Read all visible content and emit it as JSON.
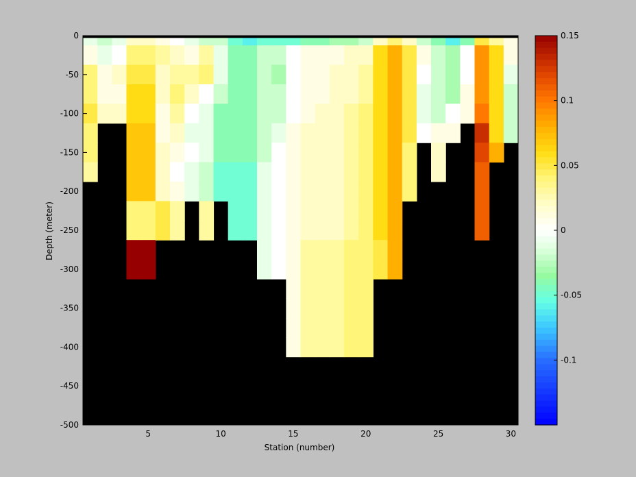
{
  "chart_data": {
    "type": "heatmap",
    "title": "",
    "xlabel": "Station (number)",
    "ylabel": "Depth (meter)",
    "xlim": [
      0.5,
      30.5
    ],
    "ylim": [
      -500,
      0
    ],
    "xticks": [
      5,
      10,
      15,
      20,
      25,
      30
    ],
    "yticks": [
      0,
      -50,
      -100,
      -150,
      -200,
      -250,
      -300,
      -350,
      -400,
      -450,
      -500
    ],
    "colorbar": {
      "range": [
        -0.15,
        0.15
      ],
      "ticks": [
        0.15,
        0.1,
        0.05,
        0,
        -0.05,
        -0.1
      ],
      "tick_labels": [
        "0.15",
        "0.1",
        "0.05",
        "0",
        "-0.05",
        "-0.1"
      ],
      "colormap": "blue-cyan-green-white-yellow-orange-darkred"
    },
    "no_data_color": "#000000",
    "background": "#c0c0c0",
    "depth_rows": [
      -5,
      -25,
      -50,
      -75,
      -100,
      -125,
      -150,
      -175,
      -200,
      -225,
      -250,
      -275,
      -300,
      -325,
      -350,
      -375,
      -400
    ],
    "stations": [
      {
        "station": 1,
        "values": [
          -0.01,
          0.01,
          0.04,
          0.04,
          0.05,
          0.04,
          0.04,
          0.03
        ]
      },
      {
        "station": 2,
        "values": [
          -0.02,
          -0.01,
          0.01,
          0.01,
          0.02
        ]
      },
      {
        "station": 3,
        "values": [
          -0.01,
          0.0,
          0.02,
          0.01,
          0.02
        ]
      },
      {
        "station": 4,
        "values": [
          0.02,
          0.04,
          0.05,
          0.06,
          0.06,
          0.07,
          0.07,
          0.07,
          0.07,
          0.04,
          0.04,
          0.15,
          0.15
        ]
      },
      {
        "station": 5,
        "values": [
          0.02,
          0.04,
          0.05,
          0.06,
          0.06,
          0.07,
          0.07,
          0.07,
          0.07,
          0.04,
          0.04,
          0.15,
          0.15
        ]
      },
      {
        "station": 6,
        "values": [
          0.01,
          0.03,
          0.02,
          0.02,
          0.01,
          0.01,
          0.02,
          0.02,
          0.02,
          0.05,
          0.05
        ]
      },
      {
        "station": 7,
        "values": [
          0.0,
          0.02,
          0.03,
          0.04,
          0.03,
          0.02,
          0.01,
          0.0,
          0.01,
          0.03,
          0.03
        ]
      },
      {
        "station": 8,
        "values": [
          -0.01,
          0.01,
          0.03,
          0.02,
          0.0,
          -0.01,
          0.0,
          -0.01,
          -0.01
        ]
      },
      {
        "station": 9,
        "values": [
          -0.02,
          0.03,
          0.04,
          0.0,
          -0.01,
          -0.01,
          -0.01,
          -0.02,
          -0.02,
          0.03,
          0.03
        ]
      },
      {
        "station": 10,
        "values": [
          -0.02,
          -0.01,
          -0.01,
          -0.02,
          -0.04,
          -0.04,
          -0.04,
          -0.05,
          -0.05
        ]
      },
      {
        "station": 11,
        "values": [
          -0.05,
          -0.04,
          -0.04,
          -0.04,
          -0.04,
          -0.04,
          -0.04,
          -0.05,
          -0.05,
          -0.05,
          -0.05
        ]
      },
      {
        "station": 12,
        "values": [
          -0.06,
          -0.04,
          -0.04,
          -0.04,
          -0.04,
          -0.04,
          -0.04,
          -0.05,
          -0.05,
          -0.05,
          -0.05
        ]
      },
      {
        "station": 13,
        "values": [
          -0.05,
          -0.02,
          -0.02,
          -0.02,
          -0.02,
          -0.02,
          -0.02,
          -0.01,
          -0.01,
          -0.01,
          -0.01,
          -0.01,
          -0.01
        ]
      },
      {
        "station": 14,
        "values": [
          -0.05,
          -0.02,
          -0.03,
          -0.02,
          -0.02,
          -0.01,
          0.0,
          0.0,
          0.0,
          0.0,
          0.0,
          0.0,
          0.0
        ]
      },
      {
        "station": 15,
        "values": [
          -0.05,
          0.0,
          0.0,
          0.0,
          0.0,
          0.01,
          0.01,
          0.01,
          0.01,
          0.01,
          0.01,
          0.01,
          0.01,
          0.01,
          0.01,
          0.01,
          0.01
        ]
      },
      {
        "station": 16,
        "values": [
          -0.04,
          0.01,
          0.01,
          0.01,
          0.01,
          0.02,
          0.02,
          0.02,
          0.02,
          0.02,
          0.02,
          0.03,
          0.03,
          0.03,
          0.03,
          0.03,
          0.03
        ]
      },
      {
        "station": 17,
        "values": [
          -0.04,
          0.01,
          0.01,
          0.01,
          0.02,
          0.02,
          0.02,
          0.02,
          0.02,
          0.02,
          0.02,
          0.03,
          0.03,
          0.03,
          0.03,
          0.03,
          0.03
        ]
      },
      {
        "station": 18,
        "values": [
          -0.03,
          0.01,
          0.02,
          0.02,
          0.02,
          0.02,
          0.02,
          0.02,
          0.02,
          0.02,
          0.02,
          0.03,
          0.03,
          0.03,
          0.03,
          0.03,
          0.03
        ]
      },
      {
        "station": 19,
        "values": [
          -0.03,
          0.02,
          0.02,
          0.02,
          0.03,
          0.03,
          0.03,
          0.03,
          0.03,
          0.03,
          0.03,
          0.04,
          0.04,
          0.04,
          0.04,
          0.04,
          0.04
        ]
      },
      {
        "station": 20,
        "values": [
          -0.02,
          0.02,
          0.03,
          0.03,
          0.04,
          0.04,
          0.04,
          0.04,
          0.04,
          0.04,
          0.04,
          0.04,
          0.04,
          0.04,
          0.04,
          0.04,
          0.04
        ]
      },
      {
        "station": 21,
        "values": [
          0.02,
          0.06,
          0.06,
          0.06,
          0.06,
          0.06,
          0.06,
          0.06,
          0.06,
          0.06,
          0.06,
          0.05,
          0.05
        ]
      },
      {
        "station": 22,
        "values": [
          0.04,
          0.08,
          0.08,
          0.08,
          0.08,
          0.08,
          0.08,
          0.08,
          0.08,
          0.08,
          0.08,
          0.08,
          0.08
        ]
      },
      {
        "station": 23,
        "values": [
          0.02,
          0.05,
          0.05,
          0.05,
          0.05,
          0.05,
          0.04,
          0.04,
          0.04
        ]
      },
      {
        "station": 24,
        "values": [
          -0.02,
          0.01,
          0.0,
          -0.01,
          -0.01,
          0.0
        ]
      },
      {
        "station": 25,
        "values": [
          -0.04,
          -0.02,
          -0.02,
          -0.02,
          -0.02,
          0.01,
          0.02,
          0.02
        ]
      },
      {
        "station": 26,
        "values": [
          -0.06,
          -0.03,
          -0.03,
          -0.03,
          0.0,
          0.01
        ]
      },
      {
        "station": 27,
        "values": [
          -0.04,
          0.0,
          0.0,
          0.01,
          0.01
        ]
      },
      {
        "station": 28,
        "values": [
          0.05,
          0.09,
          0.09,
          0.09,
          0.1,
          0.13,
          0.12,
          0.11,
          0.11,
          0.11,
          0.11
        ]
      },
      {
        "station": 29,
        "values": [
          0.03,
          0.06,
          0.06,
          0.06,
          0.06,
          0.06,
          0.08
        ]
      },
      {
        "station": 30,
        "values": [
          0.01,
          0.01,
          -0.01,
          -0.02,
          -0.02,
          -0.02
        ]
      }
    ]
  }
}
